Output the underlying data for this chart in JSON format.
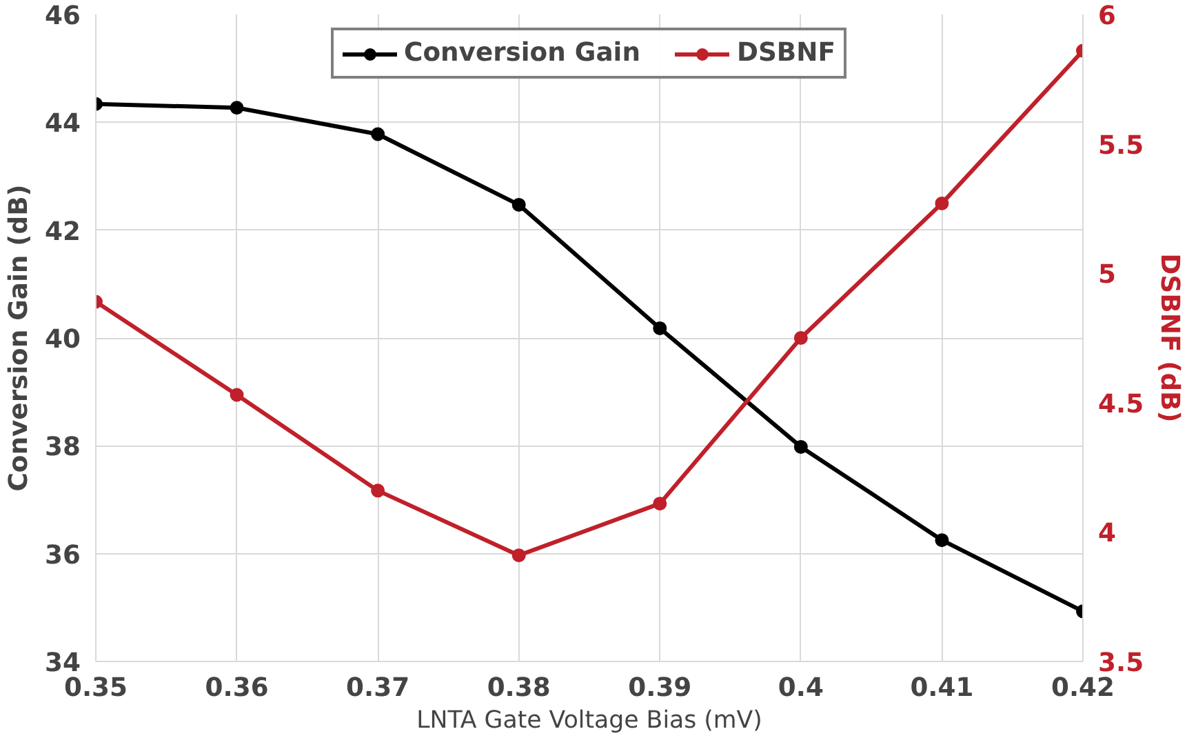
{
  "chart_data": {
    "type": "line",
    "xlabel": "LNTA Gate Voltage Bias (mV)",
    "ylabel": "Conversion Gain (dB)",
    "y2label": "DSBNF (dB)",
    "x": [
      0.35,
      0.36,
      0.37,
      0.38,
      0.39,
      0.4,
      0.41,
      0.42
    ],
    "series": [
      {
        "name": "Conversion Gain",
        "color": "#000000",
        "values": [
          44.34,
          44.27,
          43.78,
          42.47,
          40.18,
          37.98,
          36.25,
          34.93
        ]
      },
      {
        "name": "DSBNF",
        "color": "#c0202a",
        "axis": "y2",
        "values": [
          4.89,
          4.53,
          4.16,
          3.91,
          4.11,
          4.75,
          5.27,
          5.86
        ]
      }
    ],
    "xlim": [
      0.35,
      0.42
    ],
    "xticks": [
      0.35,
      0.36,
      0.37,
      0.38,
      0.39,
      0.4,
      0.41,
      0.42
    ],
    "ylim": [
      34,
      46
    ],
    "yticks": [
      34,
      36,
      38,
      40,
      42,
      44,
      46
    ],
    "y2lim": [
      3.5,
      6
    ],
    "y2ticks": [
      3.5,
      4,
      4.5,
      5,
      5.5,
      6
    ],
    "grid": true,
    "legend": "top",
    "marker": "circle",
    "line_style": "solid"
  }
}
